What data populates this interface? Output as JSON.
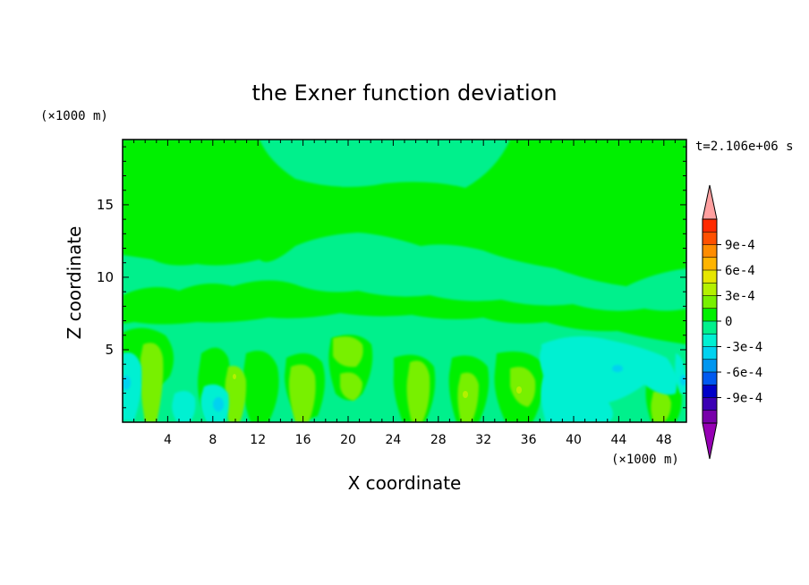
{
  "chart_data": {
    "type": "heatmap",
    "title": "the Exner function deviation",
    "xlabel": "X coordinate",
    "ylabel": "Z coordinate",
    "x_unit": "(×1000 m)",
    "z_unit": "(×1000 m)",
    "time_label": "t=2.106e+06 s",
    "xlim": [
      0,
      50
    ],
    "zlim": [
      0,
      19.5
    ],
    "x_ticks": [
      "4",
      "8",
      "12",
      "16",
      "20",
      "24",
      "28",
      "32",
      "36",
      "40",
      "44",
      "48"
    ],
    "z_ticks": [
      "5",
      "10",
      "15"
    ],
    "grid": false,
    "legend_position": "right",
    "colorbar": {
      "labels": [
        "9e-4",
        "6e-4",
        "3e-4",
        "0",
        "-3e-4",
        "-6e-4",
        "-9e-4"
      ],
      "colors": [
        "#ffa0a0",
        "#ff2a00",
        "#ff5000",
        "#ff8c00",
        "#ffb400",
        "#e6e600",
        "#b4f000",
        "#78f000",
        "#00f000",
        "#00f08c",
        "#00f0d2",
        "#00d2f0",
        "#0096f0",
        "#005af0",
        "#0000c8",
        "#3c00b4",
        "#7800aa",
        "#9600b4"
      ],
      "min_extend": true,
      "max_extend": true
    },
    "field_description": "mostly near 0 (light green / teal); slight positive plumes near the surface and slight negative pockets around x=2, 8-10, 38-48"
  }
}
